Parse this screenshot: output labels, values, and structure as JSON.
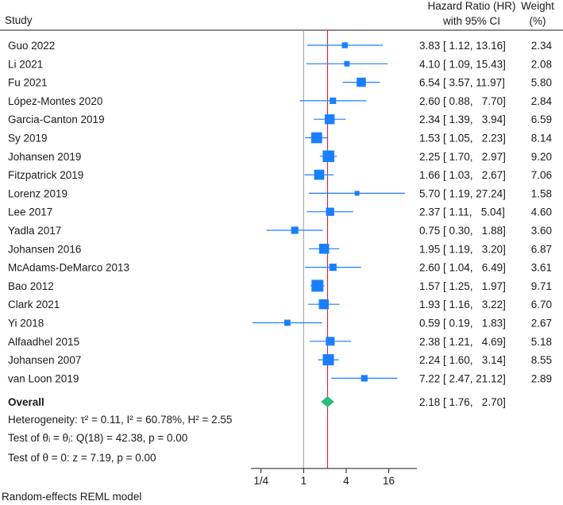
{
  "chart_data": {
    "type": "forest",
    "header": {
      "study": "Study",
      "effect_line1": "Hazard Ratio (HR)",
      "effect_line2": "with 95% CI",
      "weight_line1": "Weight",
      "weight_line2": "(%)"
    },
    "studies": [
      {
        "name": "Guo 2022",
        "hr": 3.83,
        "lo": 1.12,
        "hi": 13.16,
        "ci_text": "3.83 [ 1.12, 13.16]",
        "weight": 2.34,
        "weight_text": "2.34"
      },
      {
        "name": "Li 2021",
        "hr": 4.1,
        "lo": 1.09,
        "hi": 15.43,
        "ci_text": "4.10 [ 1.09, 15.43]",
        "weight": 2.08,
        "weight_text": "2.08"
      },
      {
        "name": "Fu 2021",
        "hr": 6.54,
        "lo": 3.57,
        "hi": 11.97,
        "ci_text": "6.54 [ 3.57, 11.97]",
        "weight": 5.8,
        "weight_text": "5.80"
      },
      {
        "name": "López-Montes 2020",
        "hr": 2.6,
        "lo": 0.88,
        "hi": 7.7,
        "ci_text": "2.60 [ 0.88,   7.70]",
        "weight": 2.84,
        "weight_text": "2.84"
      },
      {
        "name": "Garcia-Canton 2019",
        "hr": 2.34,
        "lo": 1.39,
        "hi": 3.94,
        "ci_text": "2.34 [ 1.39,   3.94]",
        "weight": 6.59,
        "weight_text": "6.59"
      },
      {
        "name": "Sy 2019",
        "hr": 1.53,
        "lo": 1.05,
        "hi": 2.23,
        "ci_text": "1.53 [ 1.05,   2.23]",
        "weight": 8.14,
        "weight_text": "8.14"
      },
      {
        "name": "Johansen 2019",
        "hr": 2.25,
        "lo": 1.7,
        "hi": 2.97,
        "ci_text": "2.25 [ 1.70,   2.97]",
        "weight": 9.2,
        "weight_text": "9.20"
      },
      {
        "name": "Fitzpatrick 2019",
        "hr": 1.66,
        "lo": 1.03,
        "hi": 2.67,
        "ci_text": "1.66 [ 1.03,   2.67]",
        "weight": 7.06,
        "weight_text": "7.06"
      },
      {
        "name": "Lorenz 2019",
        "hr": 5.7,
        "lo": 1.19,
        "hi": 27.24,
        "ci_text": "5.70 [ 1.19, 27.24]",
        "weight": 1.58,
        "weight_text": "1.58"
      },
      {
        "name": "Lee 2017",
        "hr": 2.37,
        "lo": 1.11,
        "hi": 5.04,
        "ci_text": "2.37 [ 1.11,   5.04]",
        "weight": 4.6,
        "weight_text": "4.60"
      },
      {
        "name": "Yadla 2017",
        "hr": 0.75,
        "lo": 0.3,
        "hi": 1.88,
        "ci_text": "0.75 [ 0.30,   1.88]",
        "weight": 3.6,
        "weight_text": "3.60"
      },
      {
        "name": "Johansen 2016",
        "hr": 1.95,
        "lo": 1.19,
        "hi": 3.2,
        "ci_text": "1.95 [ 1.19,   3.20]",
        "weight": 6.87,
        "weight_text": "6.87"
      },
      {
        "name": "McAdams-DeMarco 2013",
        "hr": 2.6,
        "lo": 1.04,
        "hi": 6.49,
        "ci_text": "2.60 [ 1.04,   6.49]",
        "weight": 3.61,
        "weight_text": "3.61"
      },
      {
        "name": "Bao 2012",
        "hr": 1.57,
        "lo": 1.25,
        "hi": 1.97,
        "ci_text": "1.57 [ 1.25,   1.97]",
        "weight": 9.71,
        "weight_text": "9.71"
      },
      {
        "name": "Clark 2021",
        "hr": 1.93,
        "lo": 1.16,
        "hi": 3.22,
        "ci_text": "1.93 [ 1.16,   3.22]",
        "weight": 6.7,
        "weight_text": "6.70"
      },
      {
        "name": "Yi 2018",
        "hr": 0.59,
        "lo": 0.19,
        "hi": 1.83,
        "ci_text": "0.59 [ 0.19,   1.83]",
        "weight": 2.67,
        "weight_text": "2.67"
      },
      {
        "name": "Alfaadhel 2015",
        "hr": 2.38,
        "lo": 1.21,
        "hi": 4.69,
        "ci_text": "2.38 [ 1.21,   4.69]",
        "weight": 5.18,
        "weight_text": "5.18"
      },
      {
        "name": "Johansen 2007",
        "hr": 2.24,
        "lo": 1.6,
        "hi": 3.14,
        "ci_text": "2.24 [ 1.60,   3.14]",
        "weight": 8.55,
        "weight_text": "8.55"
      },
      {
        "name": "van Loon 2019",
        "hr": 7.22,
        "lo": 2.47,
        "hi": 21.12,
        "ci_text": "7.22 [ 2.47, 21.12]",
        "weight": 2.89,
        "weight_text": "2.89"
      }
    ],
    "overall": {
      "label": "Overall",
      "hr": 2.18,
      "lo": 1.76,
      "hi": 2.7,
      "ci_text": "2.18 [ 1.76,   2.70]"
    },
    "stats": {
      "heterogeneity": "Heterogeneity: τ² = 0.11, I² = 60.78%, H² = 2.55",
      "test_equal": "Test of θᵢ = θⱼ: Q(18) = 42.38, p = 0.00",
      "test_zero": "Test of θ = 0: z = 7.19, p = 0.00"
    },
    "x_axis": {
      "scale": "log",
      "xlim": [
        0.18,
        40
      ],
      "ticks": [
        0.25,
        1,
        4,
        16
      ],
      "tick_labels": [
        "1/4",
        "1",
        "4",
        "16"
      ],
      "null_line": 1
    },
    "model_note": "Random-effects REML model",
    "colors": {
      "marker": "#1a7fff",
      "overall": "#2dbb7f",
      "null_line": "#a9a9a9",
      "overall_line": "#c8304a",
      "axis": "#1a1a1a"
    }
  }
}
